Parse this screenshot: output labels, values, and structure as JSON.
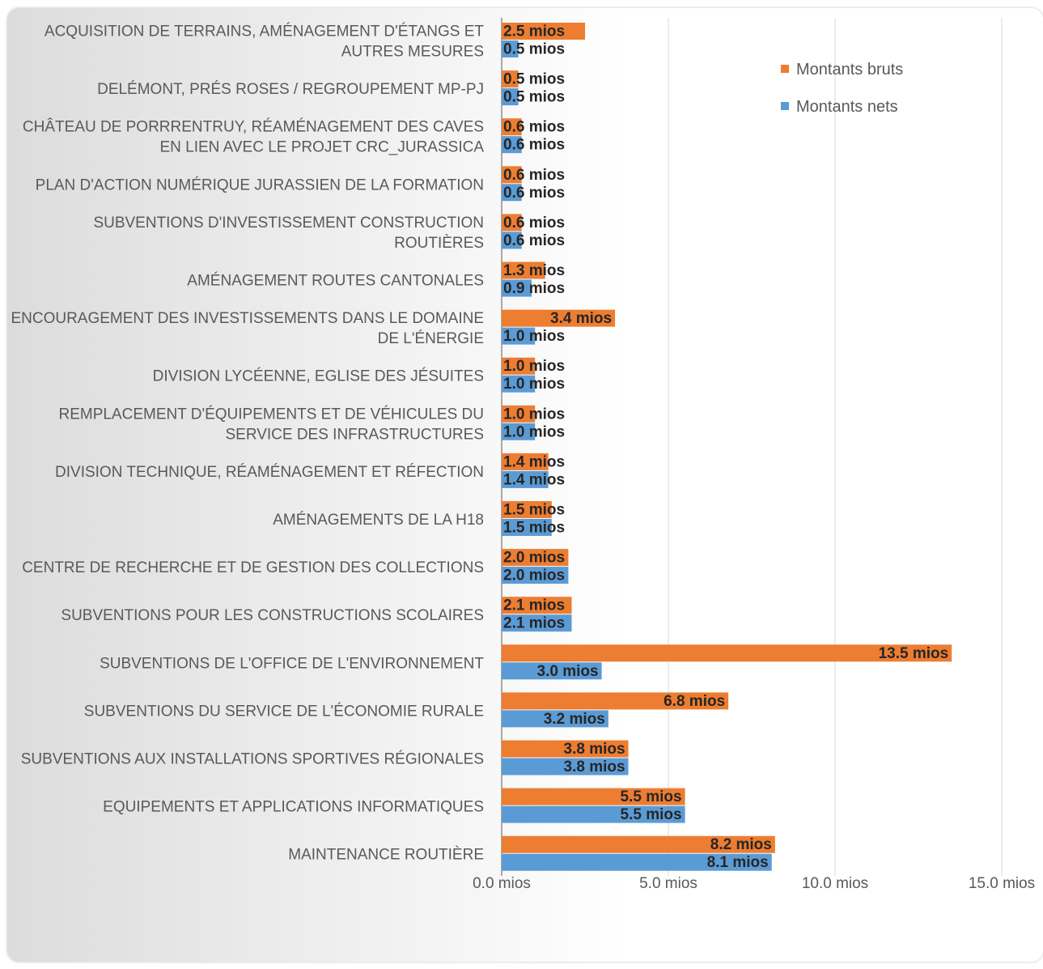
{
  "chart_data": {
    "type": "bar",
    "orientation": "horizontal",
    "title": "",
    "xlabel": "",
    "ylabel": "",
    "xlim": [
      0,
      15
    ],
    "x_ticks": [
      "0.0 mios",
      "5.0 mios",
      "10.0 mios",
      "15.0 mios"
    ],
    "grid": true,
    "legend_position": "top-right",
    "categories": [
      "ACQUISITION DE TERRAINS, AMÉNAGEMENT D'ÉTANGS ET AUTRES MESURES",
      "DELÉMONT, PRÉS ROSES / REGROUPEMENT MP-PJ",
      "CHÂTEAU DE PORRRENTRUY, RÉAMÉNAGEMENT DES CAVES EN LIEN AVEC LE PROJET CRC_JURASSICA",
      "PLAN D'ACTION NUMÉRIQUE JURASSIEN DE LA FORMATION",
      "SUBVENTIONS D'INVESTISSEMENT CONSTRUCTION ROUTIÈRES",
      "AMÉNAGEMENT ROUTES CANTONALES",
      "ENCOURAGEMENT DES INVESTISSEMENTS DANS LE DOMAINE DE L'ÉNERGIE",
      "DIVISION LYCÉENNE, EGLISE DES JÉSUITES",
      "REMPLACEMENT D'ÉQUIPEMENTS ET DE VÉHICULES DU SERVICE DES INFRASTRUCTURES",
      "DIVISION TECHNIQUE, RÉAMÉNAGEMENT ET RÉFECTION",
      "AMÉNAGEMENTS DE LA H18",
      "CENTRE DE RECHERCHE ET DE GESTION DES COLLECTIONS",
      "SUBVENTIONS POUR LES CONSTRUCTIONS SCOLAIRES",
      "SUBVENTIONS DE L'OFFICE DE L'ENVIRONNEMENT",
      "SUBVENTIONS DU SERVICE DE L'ÉCONOMIE RURALE",
      "SUBVENTIONS AUX INSTALLATIONS SPORTIVES RÉGIONALES",
      "EQUIPEMENTS ET APPLICATIONS INFORMATIQUES",
      "MAINTENANCE ROUTIÈRE"
    ],
    "category_lines": [
      [
        "ACQUISITION DE TERRAINS, AMÉNAGEMENT D'ÉTANGS ET",
        "AUTRES MESURES"
      ],
      [
        "DELÉMONT, PRÉS ROSES / REGROUPEMENT MP-PJ"
      ],
      [
        "CHÂTEAU DE PORRRENTRUY, RÉAMÉNAGEMENT DES CAVES",
        "EN LIEN AVEC LE PROJET CRC_JURASSICA"
      ],
      [
        "PLAN D'ACTION NUMÉRIQUE JURASSIEN DE LA FORMATION"
      ],
      [
        "SUBVENTIONS D'INVESTISSEMENT CONSTRUCTION",
        "ROUTIÈRES"
      ],
      [
        "AMÉNAGEMENT ROUTES CANTONALES"
      ],
      [
        "ENCOURAGEMENT DES INVESTISSEMENTS DANS LE DOMAINE",
        "DE L'ÉNERGIE"
      ],
      [
        "DIVISION LYCÉENNE, EGLISE DES JÉSUITES"
      ],
      [
        "REMPLACEMENT D'ÉQUIPEMENTS ET DE VÉHICULES DU",
        "SERVICE DES INFRASTRUCTURES"
      ],
      [
        "DIVISION TECHNIQUE, RÉAMÉNAGEMENT ET RÉFECTION"
      ],
      [
        "AMÉNAGEMENTS DE LA H18"
      ],
      [
        "CENTRE DE RECHERCHE ET DE GESTION DES COLLECTIONS"
      ],
      [
        "SUBVENTIONS POUR LES CONSTRUCTIONS SCOLAIRES"
      ],
      [
        "SUBVENTIONS DE L'OFFICE DE L'ENVIRONNEMENT"
      ],
      [
        "SUBVENTIONS DU SERVICE DE L'ÉCONOMIE RURALE"
      ],
      [
        "SUBVENTIONS AUX INSTALLATIONS SPORTIVES RÉGIONALES"
      ],
      [
        "EQUIPEMENTS ET APPLICATIONS INFORMATIQUES"
      ],
      [
        "MAINTENANCE ROUTIÈRE"
      ]
    ],
    "series": [
      {
        "name": "Montants bruts",
        "color": "#ed7d31",
        "values": [
          2.5,
          0.5,
          0.6,
          0.6,
          0.6,
          1.3,
          3.4,
          1.0,
          1.0,
          1.4,
          1.5,
          2.0,
          2.1,
          13.5,
          6.8,
          3.8,
          5.5,
          8.2
        ],
        "labels": [
          "2.5 mios",
          "0.5 mios",
          "0.6 mios",
          "0.6 mios",
          "0.6 mios",
          "1.3 mios",
          "3.4 mios",
          "1.0 mios",
          "1.0 mios",
          "1.4 mios",
          "1.5 mios",
          "2.0 mios",
          "2.1 mios",
          "13.5 mios",
          "6.8 mios",
          "3.8 mios",
          "5.5 mios",
          "8.2 mios"
        ]
      },
      {
        "name": "Montants nets",
        "color": "#5b9bd5",
        "values": [
          0.5,
          0.5,
          0.6,
          0.6,
          0.6,
          0.9,
          1.0,
          1.0,
          1.0,
          1.4,
          1.5,
          2.0,
          2.1,
          3.0,
          3.2,
          3.8,
          5.5,
          8.1
        ],
        "labels": [
          "0.5 mios",
          "0.5 mios",
          "0.6 mios",
          "0.6 mios",
          "0.6 mios",
          "0.9 mios",
          "1.0 mios",
          "1.0 mios",
          "1.0 mios",
          "1.4 mios",
          "1.5 mios",
          "2.0 mios",
          "2.1 mios",
          "3.0 mios",
          "3.2 mios",
          "3.8 mios",
          "5.5 mios",
          "8.1 mios"
        ]
      }
    ]
  }
}
